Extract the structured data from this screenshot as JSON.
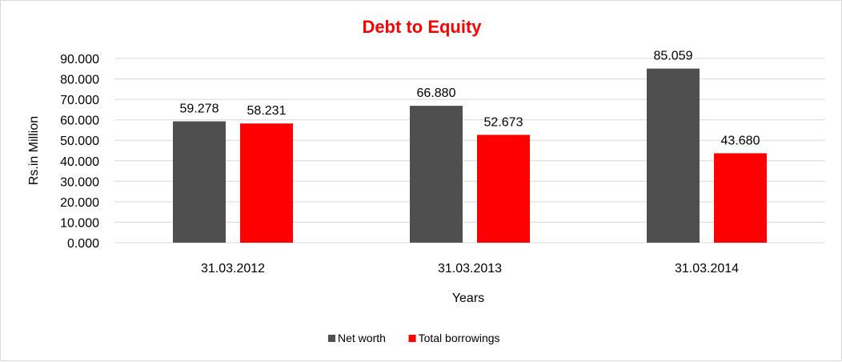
{
  "chart_data": {
    "type": "bar",
    "title": "Debt to Equity",
    "title_color": "#ff0000",
    "xlabel": "Years",
    "ylabel": "Rs.in Million",
    "categories": [
      "31.03.2012",
      "31.03.2013",
      "31.03.2014"
    ],
    "series": [
      {
        "name": "Net worth",
        "color": "#4f4f4f",
        "values": [
          59.278,
          66.88,
          85.059
        ],
        "labels": [
          "59.278",
          "66.880",
          "85.059"
        ]
      },
      {
        "name": "Total borrowings",
        "color": "#ff0000",
        "values": [
          58.231,
          52.673,
          43.68
        ],
        "labels": [
          "58.231",
          "52.673",
          "43.680"
        ]
      }
    ],
    "ylim": [
      0,
      90
    ],
    "yticks": [
      "0.000",
      "10.000",
      "20.000",
      "30.000",
      "40.000",
      "50.000",
      "60.000",
      "70.000",
      "80.000",
      "90.000"
    ],
    "grid": true,
    "grid_color": "#d9d9d9",
    "legend_position": "bottom"
  }
}
